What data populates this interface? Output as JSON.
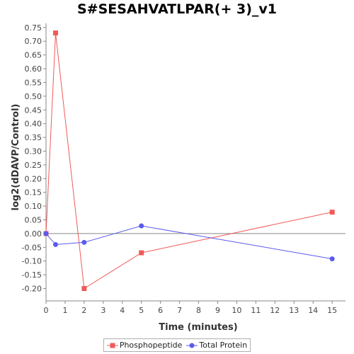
{
  "chart_data": {
    "type": "line",
    "title": "S#SESAHVATLPAR(+ 3)_v1",
    "xlabel": "Time (minutes)",
    "ylabel": "log2(dDAVP/Control)",
    "xlim": [
      0,
      15.7
    ],
    "ylim": [
      -0.245,
      0.765
    ],
    "x_ticks": [
      0,
      1,
      2,
      3,
      4,
      5,
      6,
      7,
      8,
      9,
      10,
      11,
      12,
      13,
      14,
      15
    ],
    "y_ticks": [
      -0.2,
      -0.15,
      -0.1,
      -0.05,
      0.0,
      0.05,
      0.1,
      0.15,
      0.2,
      0.25,
      0.3,
      0.35,
      0.4,
      0.45,
      0.5,
      0.55,
      0.6,
      0.65,
      0.7,
      0.75
    ],
    "y_tick_labels": [
      "-0.20",
      "-0.15",
      "-0.10",
      "-0.05",
      "0.00",
      "0.05",
      "0.10",
      "0.15",
      "0.20",
      "0.25",
      "0.30",
      "0.35",
      "0.40",
      "0.45",
      "0.50",
      "0.55",
      "0.60",
      "0.65",
      "0.70",
      "0.75"
    ],
    "zero_line": true,
    "grid": false,
    "legend_position": "bottom",
    "series": [
      {
        "name": "Phosphopeptide",
        "color": "#f05a5a",
        "marker": "square",
        "x": [
          0,
          0.5,
          2,
          5,
          15
        ],
        "y": [
          0.0,
          0.73,
          -0.2,
          -0.07,
          0.078
        ]
      },
      {
        "name": "Total Protein",
        "color": "#5a5af0",
        "marker": "circle",
        "x": [
          0,
          0.5,
          2,
          5,
          15
        ],
        "y": [
          0.0,
          -0.04,
          -0.032,
          0.028,
          -0.092
        ]
      }
    ]
  }
}
